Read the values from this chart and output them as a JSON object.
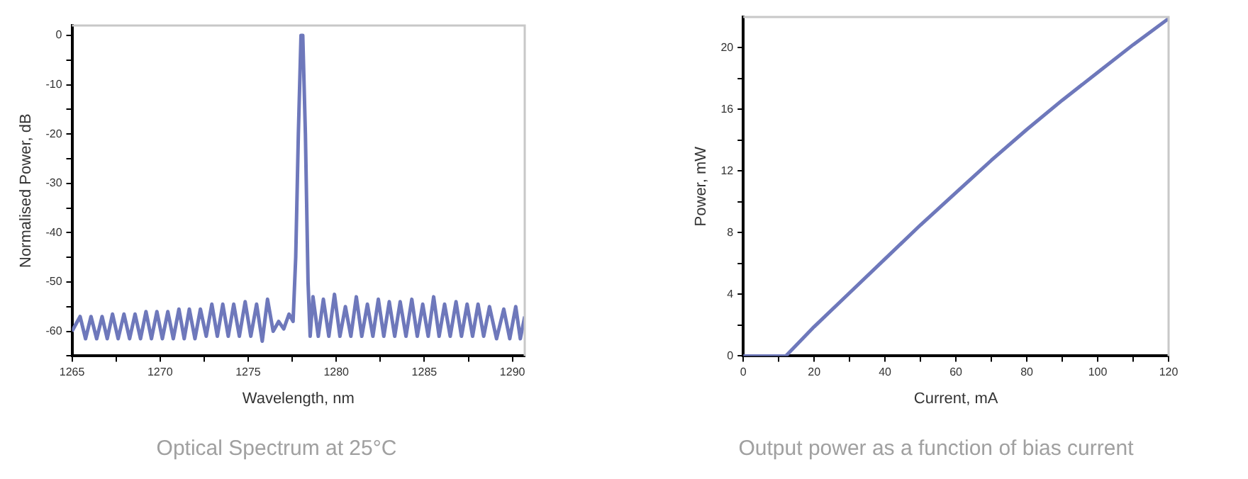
{
  "chart_data": [
    {
      "type": "line",
      "title": "Optical Spectrum at 25°C",
      "xlabel": "Wavelength, nm",
      "ylabel": "Normalised Power, dB",
      "xlim": [
        1265,
        1290.7
      ],
      "ylim": [
        -65,
        2
      ],
      "xticks": [
        1265,
        {
          "value": 1267.5,
          "label": null
        },
        1270,
        {
          "value": 1272.5,
          "label": null
        },
        1275,
        {
          "value": 1277.5,
          "label": null
        },
        1280,
        {
          "value": 1282.5,
          "label": null
        },
        1285,
        {
          "value": 1287.5,
          "label": null
        },
        1290
      ],
      "yticks": [
        {
          "value": -65,
          "label": null
        },
        -60,
        {
          "value": -55,
          "label": null
        },
        -50,
        {
          "value": -45,
          "label": null
        },
        -40,
        {
          "value": -35,
          "label": null
        },
        -30,
        {
          "value": -25,
          "label": null
        },
        -20,
        {
          "value": -15,
          "label": null
        },
        -10,
        {
          "value": -5,
          "label": null
        },
        0
      ],
      "grid": false,
      "legend": false,
      "marker": "none",
      "line_style": "solid",
      "series": [
        {
          "color": "#6e78bb",
          "x": [
            1265,
            1265.46,
            1265.77,
            1266.08,
            1266.4,
            1266.71,
            1267.0,
            1267.3,
            1267.62,
            1267.95,
            1268.27,
            1268.58,
            1268.89,
            1269.2,
            1269.51,
            1269.82,
            1270.13,
            1270.44,
            1270.75,
            1271.07,
            1271.37,
            1271.66,
            1271.98,
            1272.29,
            1272.62,
            1272.94,
            1273.25,
            1273.56,
            1273.87,
            1274.18,
            1274.5,
            1274.83,
            1275.15,
            1275.48,
            1275.8,
            1276.1,
            1276.42,
            1276.73,
            1277.02,
            1277.32,
            1277.55,
            1277.7,
            1277.85,
            1278.0,
            1278.1,
            1278.25,
            1278.4,
            1278.52,
            1278.68,
            1278.98,
            1279.27,
            1279.58,
            1279.9,
            1280.21,
            1280.52,
            1280.83,
            1281.14,
            1281.45,
            1281.77,
            1282.08,
            1282.39,
            1282.7,
            1283.01,
            1283.32,
            1283.63,
            1283.96,
            1284.29,
            1284.6,
            1284.91,
            1285.22,
            1285.53,
            1285.84,
            1286.15,
            1286.47,
            1286.8,
            1287.11,
            1287.43,
            1287.74,
            1288.05,
            1288.37,
            1288.7,
            1289.1,
            1289.51,
            1289.85,
            1290.19,
            1290.45,
            1290.7
          ],
          "values": [
            -60,
            -57,
            -61.5,
            -57,
            -61.5,
            -57,
            -61.5,
            -56.5,
            -61.5,
            -56.5,
            -61.5,
            -56.5,
            -61.5,
            -56,
            -61.5,
            -56,
            -61.5,
            -56,
            -61.5,
            -55.5,
            -61.5,
            -55.5,
            -61.5,
            -55.5,
            -61,
            -54.5,
            -61,
            -54.5,
            -61,
            -54.5,
            -61,
            -54,
            -61,
            -54.5,
            -62,
            -53.5,
            -60,
            -58,
            -59.5,
            -56.5,
            -58,
            -45,
            -20,
            0,
            0,
            -20,
            -50,
            -61,
            -53,
            -61,
            -53.5,
            -61,
            -52.5,
            -61,
            -55,
            -61,
            -53,
            -61,
            -54.5,
            -61,
            -53.5,
            -61,
            -54,
            -61,
            -54,
            -61,
            -53.5,
            -61,
            -54.5,
            -61,
            -53,
            -61,
            -54.5,
            -61,
            -54,
            -61,
            -54.5,
            -61,
            -54.5,
            -61,
            -55,
            -61.5,
            -55.5,
            -61.5,
            -55,
            -61.5,
            -57
          ]
        }
      ]
    },
    {
      "type": "line",
      "title": "Output power as a function of bias current",
      "xlabel": "Current, mA",
      "ylabel": "Power, mW",
      "xlim": [
        0,
        120
      ],
      "ylim": [
        0,
        22
      ],
      "xticks": [
        0,
        {
          "value": 10,
          "label": null
        },
        20,
        {
          "value": 30,
          "label": null
        },
        40,
        {
          "value": 50,
          "label": null
        },
        60,
        {
          "value": 70,
          "label": null
        },
        80,
        {
          "value": 90,
          "label": null
        },
        100,
        {
          "value": 110,
          "label": null
        },
        120
      ],
      "yticks": [
        0,
        {
          "value": 2,
          "label": null
        },
        4,
        {
          "value": 6,
          "label": null
        },
        8,
        {
          "value": 10,
          "label": null
        },
        12,
        {
          "value": 14,
          "label": null
        },
        16,
        {
          "value": 18,
          "label": null
        },
        20
      ],
      "grid": false,
      "legend": false,
      "marker": "none",
      "line_style": "solid",
      "series": [
        {
          "color": "#6e78bb",
          "x": [
            0,
            12,
            20,
            30,
            40,
            50,
            60,
            70,
            80,
            90,
            100,
            110,
            120
          ],
          "values": [
            0,
            0,
            1.9,
            4.1,
            6.3,
            8.5,
            10.6,
            12.7,
            14.7,
            16.6,
            18.4,
            20.2,
            21.9
          ]
        }
      ]
    }
  ]
}
